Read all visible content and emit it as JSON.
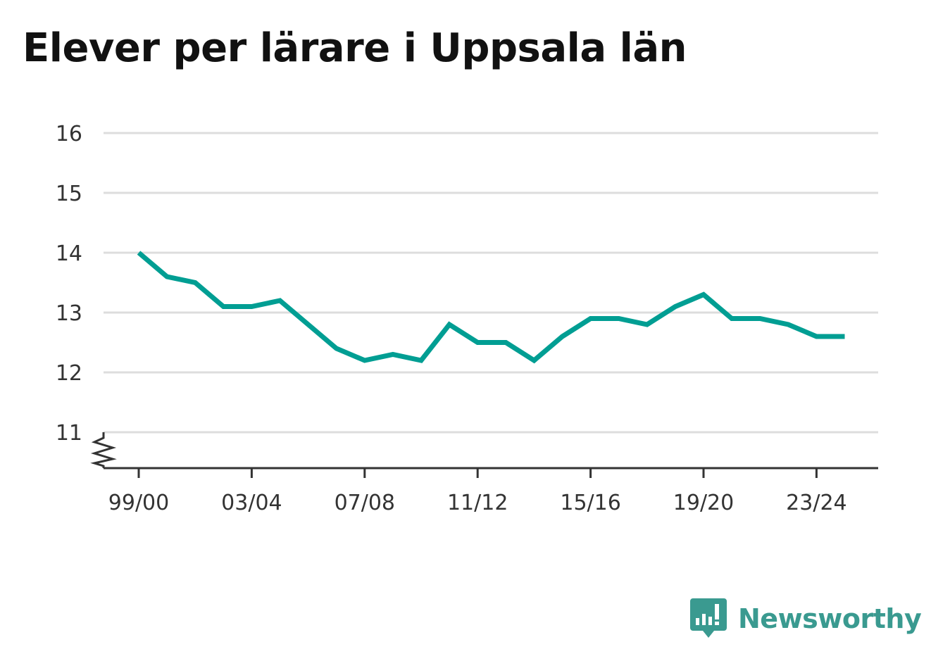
{
  "chart_data": {
    "type": "line",
    "title": "Elever per lärare i Uppsala län",
    "x": [
      "99/00",
      "00/01",
      "01/02",
      "02/03",
      "03/04",
      "04/05",
      "05/06",
      "06/07",
      "07/08",
      "08/09",
      "09/10",
      "10/11",
      "11/12",
      "12/13",
      "13/14",
      "14/15",
      "15/16",
      "16/17",
      "17/18",
      "18/19",
      "19/20",
      "20/21",
      "21/22",
      "22/23",
      "23/24",
      "24/25"
    ],
    "x_tick_labels": [
      "99/00",
      "03/04",
      "07/08",
      "11/12",
      "15/16",
      "19/20",
      "23/24"
    ],
    "series": [
      {
        "values": [
          14.0,
          13.6,
          13.5,
          13.1,
          13.1,
          13.2,
          12.8,
          12.4,
          12.2,
          12.3,
          12.2,
          12.8,
          12.5,
          12.5,
          12.2,
          12.6,
          12.9,
          12.9,
          12.8,
          13.1,
          13.3,
          12.9,
          12.9,
          12.8,
          12.6,
          12.6
        ]
      }
    ],
    "y_ticks": [
      11,
      12,
      13,
      14,
      15,
      16
    ],
    "ylim": [
      10.4,
      16
    ],
    "axis_break": true,
    "grid": true,
    "line_color": "#009e93"
  },
  "brand": {
    "name": "Newsworthy",
    "color": "#3a9a90"
  }
}
